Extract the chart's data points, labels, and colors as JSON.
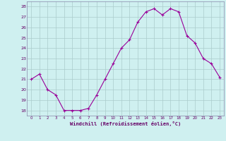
{
  "x": [
    0,
    1,
    2,
    3,
    4,
    5,
    6,
    7,
    8,
    9,
    10,
    11,
    12,
    13,
    14,
    15,
    16,
    17,
    18,
    19,
    20,
    21,
    22,
    23
  ],
  "y": [
    21.0,
    21.5,
    20.0,
    19.5,
    18.0,
    18.0,
    18.0,
    18.2,
    19.5,
    21.0,
    22.5,
    24.0,
    24.8,
    26.5,
    27.5,
    27.8,
    27.2,
    27.8,
    27.5,
    25.2,
    24.5,
    23.0,
    22.5,
    21.2
  ],
  "line_color": "#990099",
  "marker": "+",
  "marker_size": 3,
  "bg_color": "#cff0f0",
  "grid_color": "#aacccc",
  "xlabel": "Windchill (Refroidissement éolien,°C)",
  "ylim": [
    17.5,
    28.5
  ],
  "yticks": [
    18,
    19,
    20,
    21,
    22,
    23,
    24,
    25,
    26,
    27,
    28
  ],
  "xlim": [
    -0.5,
    23.5
  ],
  "xticks": [
    0,
    1,
    2,
    3,
    4,
    5,
    6,
    7,
    8,
    9,
    10,
    11,
    12,
    13,
    14,
    15,
    16,
    17,
    18,
    19,
    20,
    21,
    22,
    23
  ],
  "spine_color": "#8888aa",
  "tick_color": "#660066",
  "label_color": "#660066"
}
